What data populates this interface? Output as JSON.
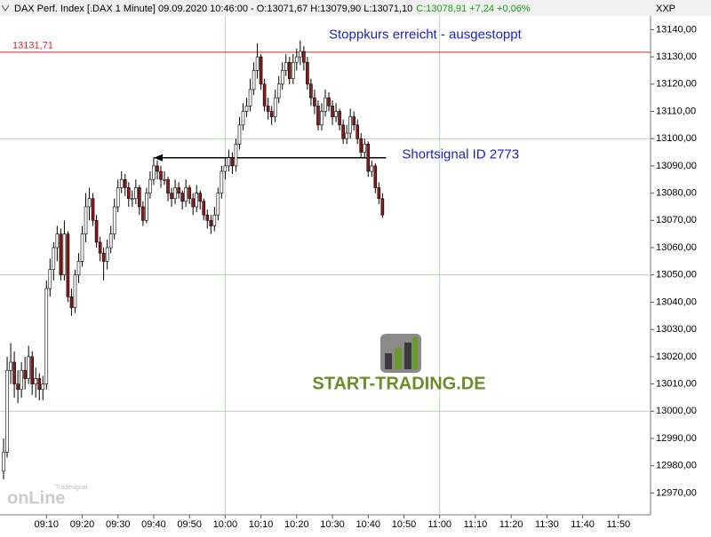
{
  "chart_data": {
    "type": "candlestick",
    "title": "DAX Perf. Index [.DAX  1 Minute] 09.09.2020 10:46:00 - O:13071,67 H:13079,90 L:13071,10",
    "title_change": "C:13078,91 +7,24 +0,06%",
    "axis_label": "XXP",
    "up_color": "#ffffff",
    "down_color": "#8b1a1a",
    "grid_color": "#b9d3b9",
    "xlim": [
      "08:57",
      "11:59"
    ],
    "ylim": [
      12962,
      13145
    ],
    "xticks": [
      "09:10",
      "09:20",
      "09:30",
      "09:40",
      "09:50",
      "10:00",
      "10:10",
      "10:20",
      "10:30",
      "10:40",
      "10:50",
      "11:00",
      "11:10",
      "11:20",
      "11:30",
      "11:40",
      "11:50"
    ],
    "yticks": [
      {
        "value": 13140,
        "label": "13140,00"
      },
      {
        "value": 13130,
        "label": "13130,00"
      },
      {
        "value": 13120,
        "label": "13120,00"
      },
      {
        "value": 13110,
        "label": "13110,00"
      },
      {
        "value": 13100,
        "label": "13100,00"
      },
      {
        "value": 13090,
        "label": "13090,00"
      },
      {
        "value": 13080,
        "label": "13080,00"
      },
      {
        "value": 13070,
        "label": "13070,00"
      },
      {
        "value": 13060,
        "label": "13060,00"
      },
      {
        "value": 13050,
        "label": "13050,00"
      },
      {
        "value": 13040,
        "label": "13040,00"
      },
      {
        "value": 13030,
        "label": "13030,00"
      },
      {
        "value": 13020,
        "label": "13020,00"
      },
      {
        "value": 13010,
        "label": "13010,00"
      },
      {
        "value": 13000,
        "label": "13000,00"
      },
      {
        "value": 12990,
        "label": "12990,00"
      },
      {
        "value": 12980,
        "label": "12980,00"
      },
      {
        "value": 12970,
        "label": "12970,00"
      }
    ],
    "xgrid": [
      "10:00",
      "11:00"
    ],
    "ygrid": [
      13000,
      13050,
      13100
    ],
    "stop_line": {
      "value": 13131.71,
      "label": "13131,71",
      "color": "#d62728",
      "annotation": "Stoppkurs erreicht - ausgestoppt"
    },
    "signal": {
      "value": 13093,
      "x": [
        "09:40",
        "10:45"
      ],
      "annotation": "Shortsignal ID 2773"
    },
    "x": [
      "08:58",
      "08:59",
      "09:00",
      "09:01",
      "09:02",
      "09:03",
      "09:04",
      "09:05",
      "09:06",
      "09:07",
      "09:08",
      "09:09",
      "09:10",
      "09:11",
      "09:12",
      "09:13",
      "09:14",
      "09:15",
      "09:16",
      "09:17",
      "09:18",
      "09:19",
      "09:20",
      "09:21",
      "09:22",
      "09:23",
      "09:24",
      "09:25",
      "09:26",
      "09:27",
      "09:28",
      "09:29",
      "09:30",
      "09:31",
      "09:32",
      "09:33",
      "09:34",
      "09:35",
      "09:36",
      "09:37",
      "09:38",
      "09:39",
      "09:40",
      "09:41",
      "09:42",
      "09:43",
      "09:44",
      "09:45",
      "09:46",
      "09:47",
      "09:48",
      "09:49",
      "09:50",
      "09:51",
      "09:52",
      "09:53",
      "09:54",
      "09:55",
      "09:56",
      "09:57",
      "09:58",
      "09:59",
      "10:00",
      "10:01",
      "10:02",
      "10:03",
      "10:04",
      "10:05",
      "10:06",
      "10:07",
      "10:08",
      "10:09",
      "10:10",
      "10:11",
      "10:12",
      "10:13",
      "10:14",
      "10:15",
      "10:16",
      "10:17",
      "10:18",
      "10:19",
      "10:20",
      "10:21",
      "10:22",
      "10:23",
      "10:24",
      "10:25",
      "10:26",
      "10:27",
      "10:28",
      "10:29",
      "10:30",
      "10:31",
      "10:32",
      "10:33",
      "10:34",
      "10:35",
      "10:36",
      "10:37",
      "10:38",
      "10:39",
      "10:40",
      "10:41",
      "10:42",
      "10:43",
      "10:44"
    ],
    "ohlc": [
      [
        12978,
        12990,
        12975,
        12985
      ],
      [
        12985,
        13020,
        12983,
        13015
      ],
      [
        13015,
        13025,
        13010,
        13018
      ],
      [
        13018,
        13022,
        13005,
        13010
      ],
      [
        13010,
        13015,
        13003,
        13008
      ],
      [
        13008,
        13018,
        13005,
        13015
      ],
      [
        13015,
        13020,
        13008,
        13012
      ],
      [
        13012,
        13024,
        13010,
        13020
      ],
      [
        13020,
        13022,
        13006,
        13010
      ],
      [
        13010,
        13016,
        13005,
        13012
      ],
      [
        13012,
        13014,
        13004,
        13008
      ],
      [
        13008,
        13013,
        13004,
        13010
      ],
      [
        13010,
        13048,
        13008,
        13045
      ],
      [
        13045,
        13056,
        13042,
        13052
      ],
      [
        13052,
        13062,
        13048,
        13060
      ],
      [
        13060,
        13068,
        13055,
        13065
      ],
      [
        13065,
        13067,
        13048,
        13050
      ],
      [
        13050,
        13070,
        13048,
        13065
      ],
      [
        13065,
        13066,
        13040,
        13042
      ],
      [
        13042,
        13045,
        13035,
        13038
      ],
      [
        13038,
        13052,
        13036,
        13050
      ],
      [
        13050,
        13058,
        13047,
        13055
      ],
      [
        13055,
        13068,
        13053,
        13065
      ],
      [
        13065,
        13080,
        13062,
        13075
      ],
      [
        13075,
        13082,
        13070,
        13078
      ],
      [
        13078,
        13080,
        13068,
        13070
      ],
      [
        13070,
        13072,
        13060,
        13062
      ],
      [
        13062,
        13064,
        13055,
        13058
      ],
      [
        13058,
        13060,
        13048,
        13055
      ],
      [
        13055,
        13063,
        13052,
        13060
      ],
      [
        13060,
        13068,
        13058,
        13065
      ],
      [
        13065,
        13078,
        13063,
        13075
      ],
      [
        13075,
        13085,
        13073,
        13082
      ],
      [
        13082,
        13088,
        13080,
        13085
      ],
      [
        13085,
        13087,
        13079,
        13082
      ],
      [
        13082,
        13084,
        13075,
        13078
      ],
      [
        13078,
        13081,
        13075,
        13078
      ],
      [
        13078,
        13085,
        13076,
        13082
      ],
      [
        13082,
        13083,
        13072,
        13075
      ],
      [
        13075,
        13077,
        13068,
        13070
      ],
      [
        13070,
        13082,
        13069,
        13080
      ],
      [
        13080,
        13088,
        13078,
        13085
      ],
      [
        13085,
        13093,
        13083,
        13090
      ],
      [
        13090,
        13092,
        13085,
        13088
      ],
      [
        13088,
        13090,
        13082,
        13085
      ],
      [
        13085,
        13088,
        13083,
        13085
      ],
      [
        13085,
        13086,
        13077,
        13080
      ],
      [
        13080,
        13082,
        13075,
        13078
      ],
      [
        13078,
        13085,
        13076,
        13082
      ],
      [
        13082,
        13084,
        13078,
        13080
      ],
      [
        13080,
        13081,
        13074,
        13077
      ],
      [
        13077,
        13085,
        13075,
        13082
      ],
      [
        13082,
        13083,
        13076,
        13078
      ],
      [
        13078,
        13080,
        13072,
        13075
      ],
      [
        13075,
        13083,
        13073,
        13080
      ],
      [
        13080,
        13081,
        13074,
        13077
      ],
      [
        13077,
        13078,
        13070,
        13072
      ],
      [
        13072,
        13074,
        13067,
        13070
      ],
      [
        13070,
        13072,
        13065,
        13068
      ],
      [
        13068,
        13075,
        13066,
        13072
      ],
      [
        13072,
        13082,
        13070,
        13080
      ],
      [
        13080,
        13090,
        13078,
        13088
      ],
      [
        13088,
        13093,
        13085,
        13090
      ],
      [
        13090,
        13096,
        13088,
        13093
      ],
      [
        13093,
        13095,
        13087,
        13090
      ],
      [
        13090,
        13100,
        13088,
        13098
      ],
      [
        13098,
        13108,
        13096,
        13105
      ],
      [
        13105,
        13113,
        13103,
        13110
      ],
      [
        13110,
        13115,
        13108,
        13112
      ],
      [
        13112,
        13122,
        13110,
        13118
      ],
      [
        13118,
        13128,
        13116,
        13125
      ],
      [
        13125,
        13135,
        13122,
        13130
      ],
      [
        13130,
        13131,
        13118,
        13120
      ],
      [
        13120,
        13122,
        13110,
        13112
      ],
      [
        13112,
        13115,
        13107,
        13110
      ],
      [
        13110,
        13112,
        13105,
        13108
      ],
      [
        13108,
        13118,
        13106,
        13115
      ],
      [
        13115,
        13123,
        13113,
        13120
      ],
      [
        13120,
        13128,
        13118,
        13125
      ],
      [
        13125,
        13131,
        13123,
        13128
      ],
      [
        13128,
        13130,
        13120,
        13122
      ],
      [
        13122,
        13131,
        13120,
        13128
      ],
      [
        13128,
        13133,
        13125,
        13130
      ],
      [
        13130,
        13136,
        13127,
        13132
      ],
      [
        13132,
        13134,
        13125,
        13128
      ],
      [
        13128,
        13130,
        13118,
        13120
      ],
      [
        13120,
        13122,
        13112,
        13115
      ],
      [
        13115,
        13118,
        13109,
        13112
      ],
      [
        13112,
        13114,
        13103,
        13105
      ],
      [
        13105,
        13113,
        13103,
        13110
      ],
      [
        13110,
        13118,
        13108,
        13115
      ],
      [
        13115,
        13117,
        13110,
        13112
      ],
      [
        13112,
        13114,
        13105,
        13108
      ],
      [
        13108,
        13113,
        13106,
        13110
      ],
      [
        13110,
        13111,
        13103,
        13105
      ],
      [
        13105,
        13107,
        13098,
        13100
      ],
      [
        13100,
        13105,
        13098,
        13102
      ],
      [
        13102,
        13111,
        13100,
        13108
      ],
      [
        13108,
        13110,
        13103,
        13105
      ],
      [
        13105,
        13107,
        13098,
        13100
      ],
      [
        13100,
        13102,
        13093,
        13095
      ],
      [
        13095,
        13100,
        13093,
        13098
      ],
      [
        13098,
        13099,
        13086,
        13088
      ],
      [
        13088,
        13092,
        13086,
        13090
      ],
      [
        13090,
        13091,
        13080,
        13082
      ],
      [
        13082,
        13084,
        13076,
        13078
      ],
      [
        13078,
        13080,
        13071,
        13072
      ]
    ]
  },
  "branding": {
    "site": "START-TRADING.DE",
    "provider": "onLine",
    "provider_small": "Tradesignal"
  }
}
